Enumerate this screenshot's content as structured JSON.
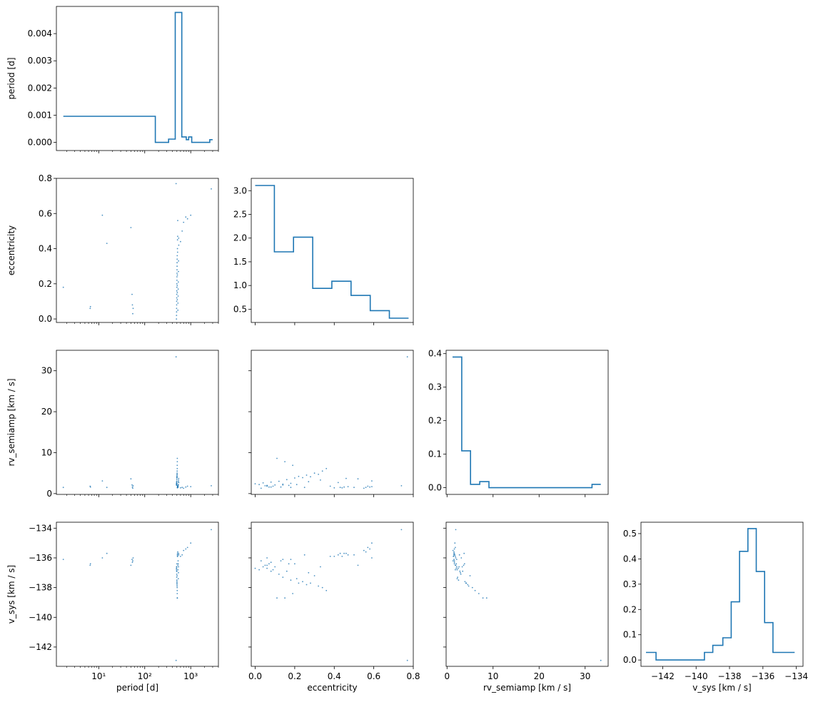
{
  "colors": {
    "series": "#1f77b4",
    "axis": "#000000",
    "background": "#ffffff"
  },
  "chart_data": {
    "type": "corner",
    "variables": [
      "period",
      "eccentricity",
      "rv_semiamp",
      "v_sys"
    ],
    "labels": {
      "period": "period [d]",
      "eccentricity": "eccentricity",
      "rv_semiamp": "rv_semiamp [km / s]",
      "v_sys": "v_sys [km / s]"
    },
    "axes": {
      "period": {
        "scale": "log",
        "lim": [
          1.2,
          4000
        ],
        "ticks": [
          {
            "value": 10,
            "label": "10¹"
          },
          {
            "value": 100,
            "label": "10²"
          },
          {
            "value": 1000,
            "label": "10³"
          }
        ]
      },
      "eccentricity": {
        "scale": "linear",
        "lim": [
          -0.02,
          0.8
        ],
        "ticks": [
          {
            "value": 0.0,
            "label": "0.0"
          },
          {
            "value": 0.2,
            "label": "0.2"
          },
          {
            "value": 0.4,
            "label": "0.4"
          },
          {
            "value": 0.6,
            "label": "0.6"
          },
          {
            "value": 0.8,
            "label": "0.8"
          }
        ]
      },
      "rv_semiamp": {
        "scale": "linear",
        "lim": [
          -0.2,
          35
        ],
        "ticks": [
          {
            "value": 0,
            "label": "0"
          },
          {
            "value": 10,
            "label": "10"
          },
          {
            "value": 20,
            "label": "20"
          },
          {
            "value": 30,
            "label": "30"
          }
        ]
      },
      "v_sys": {
        "scale": "linear",
        "lim": [
          -143.3,
          -133.6
        ],
        "ticks": [
          {
            "value": -142,
            "label": "−142"
          },
          {
            "value": -140,
            "label": "−140"
          },
          {
            "value": -138,
            "label": "−138"
          },
          {
            "value": -136,
            "label": "−136"
          },
          {
            "value": -134,
            "label": "−134"
          }
        ]
      }
    },
    "histograms": {
      "period": {
        "ylim": [
          -0.0003,
          0.005
        ],
        "yticks": [
          {
            "value": 0.0,
            "label": "0.000"
          },
          {
            "value": 0.001,
            "label": "0.001"
          },
          {
            "value": 0.002,
            "label": "0.002"
          },
          {
            "value": 0.003,
            "label": "0.003"
          },
          {
            "value": 0.004,
            "label": "0.004"
          }
        ],
        "edges": [
          1.7,
          170,
          330,
          460,
          640,
          800,
          900,
          1050,
          2600,
          3000
        ],
        "values": [
          0.00096,
          0.0,
          0.00012,
          0.00478,
          0.0002,
          0.0001,
          0.0002,
          0.0,
          0.0001
        ]
      },
      "eccentricity": {
        "ylim": [
          0.22,
          3.26
        ],
        "yticks": [
          {
            "value": 0.5,
            "label": "0.5"
          },
          {
            "value": 1.0,
            "label": "1.0"
          },
          {
            "value": 1.5,
            "label": "1.5"
          },
          {
            "value": 2.0,
            "label": "2.0"
          },
          {
            "value": 2.5,
            "label": "2.5"
          },
          {
            "value": 3.0,
            "label": "3.0"
          }
        ],
        "edges": [
          0.0,
          0.097,
          0.194,
          0.291,
          0.388,
          0.485,
          0.582,
          0.679,
          0.776
        ],
        "values": [
          3.11,
          1.71,
          2.02,
          0.94,
          1.09,
          0.79,
          0.47,
          0.31
        ]
      },
      "rv_semiamp": {
        "ylim": [
          -0.02,
          0.41
        ],
        "yticks": [
          {
            "value": 0.0,
            "label": "0.0"
          },
          {
            "value": 0.1,
            "label": "0.1"
          },
          {
            "value": 0.2,
            "label": "0.2"
          },
          {
            "value": 0.3,
            "label": "0.3"
          },
          {
            "value": 0.4,
            "label": "0.4"
          }
        ],
        "edges": [
          1.2,
          3.2,
          5.1,
          7.1,
          9.1,
          31.5,
          33.4
        ],
        "values": [
          0.39,
          0.11,
          0.01,
          0.018,
          0.0,
          0.01
        ]
      },
      "v_sys": {
        "ylim": [
          -0.025,
          0.545
        ],
        "yticks": [
          {
            "value": 0.0,
            "label": "0.0"
          },
          {
            "value": 0.1,
            "label": "0.1"
          },
          {
            "value": 0.2,
            "label": "0.2"
          },
          {
            "value": 0.3,
            "label": "0.3"
          },
          {
            "value": 0.4,
            "label": "0.4"
          },
          {
            "value": 0.5,
            "label": "0.5"
          }
        ],
        "edges": [
          -143.0,
          -142.4,
          -139.5,
          -139.0,
          -138.4,
          -137.9,
          -137.4,
          -136.9,
          -136.4,
          -135.9,
          -135.4,
          -134.9,
          -134.1
        ],
        "values": [
          0.03,
          0.0,
          0.03,
          0.058,
          0.088,
          0.23,
          0.43,
          0.52,
          0.35,
          0.148,
          0.03,
          0.03
        ]
      }
    },
    "samples": [
      {
        "period": 1.7,
        "eccentricity": 0.18,
        "rv_semiamp": 1.5,
        "v_sys": -136.1
      },
      {
        "period": 6.5,
        "eccentricity": 0.06,
        "rv_semiamp": 1.8,
        "v_sys": -136.5
      },
      {
        "period": 6.6,
        "eccentricity": 0.07,
        "rv_semiamp": 1.6,
        "v_sys": -136.4
      },
      {
        "period": 12,
        "eccentricity": 0.59,
        "rv_semiamp": 3.1,
        "v_sys": -136.0
      },
      {
        "period": 15,
        "eccentricity": 0.43,
        "rv_semiamp": 1.5,
        "v_sys": -135.7
      },
      {
        "period": 50,
        "eccentricity": 0.52,
        "rv_semiamp": 3.6,
        "v_sys": -136.5
      },
      {
        "period": 53,
        "eccentricity": 0.14,
        "rv_semiamp": 2.1,
        "v_sys": -136.1
      },
      {
        "period": 54,
        "eccentricity": 0.08,
        "rv_semiamp": 1.6,
        "v_sys": -136.3
      },
      {
        "period": 55,
        "eccentricity": 0.03,
        "rv_semiamp": 1.3,
        "v_sys": -136.2
      },
      {
        "period": 56,
        "eccentricity": 0.06,
        "rv_semiamp": 1.9,
        "v_sys": -136.0
      },
      {
        "period": 480,
        "eccentricity": 0.77,
        "rv_semiamp": 33.4,
        "v_sys": -142.9
      },
      {
        "period": 490,
        "eccentricity": 0.0,
        "rv_semiamp": 2.4,
        "v_sys": -136.7
      },
      {
        "period": 491,
        "eccentricity": 0.02,
        "rv_semiamp": 2.2,
        "v_sys": -136.8
      },
      {
        "period": 492,
        "eccentricity": 0.04,
        "rv_semiamp": 2.6,
        "v_sys": -136.6
      },
      {
        "period": 493,
        "eccentricity": 0.06,
        "rv_semiamp": 2.0,
        "v_sys": -136.7
      },
      {
        "period": 494,
        "eccentricity": 0.08,
        "rv_semiamp": 2.8,
        "v_sys": -136.9
      },
      {
        "period": 495,
        "eccentricity": 0.1,
        "rv_semiamp": 2.1,
        "v_sys": -136.6
      },
      {
        "period": 496,
        "eccentricity": 0.12,
        "rv_semiamp": 3.0,
        "v_sys": -137.1
      },
      {
        "period": 497,
        "eccentricity": 0.14,
        "rv_semiamp": 2.3,
        "v_sys": -137.3
      },
      {
        "period": 498,
        "eccentricity": 0.16,
        "rv_semiamp": 3.4,
        "v_sys": -136.9
      },
      {
        "period": 499,
        "eccentricity": 0.18,
        "rv_semiamp": 2.5,
        "v_sys": -137.5
      },
      {
        "period": 500,
        "eccentricity": 0.2,
        "rv_semiamp": 3.8,
        "v_sys": -136.4
      },
      {
        "period": 501,
        "eccentricity": 0.22,
        "rv_semiamp": 4.2,
        "v_sys": -137.7
      },
      {
        "period": 502,
        "eccentricity": 0.24,
        "rv_semiamp": 3.9,
        "v_sys": -137.6
      },
      {
        "period": 503,
        "eccentricity": 0.26,
        "rv_semiamp": 4.5,
        "v_sys": -137.8
      },
      {
        "period": 504,
        "eccentricity": 0.28,
        "rv_semiamp": 4.1,
        "v_sys": -137.7
      },
      {
        "period": 505,
        "eccentricity": 0.3,
        "rv_semiamp": 5.0,
        "v_sys": -137.2
      },
      {
        "period": 506,
        "eccentricity": 0.32,
        "rv_semiamp": 4.7,
        "v_sys": -137.9
      },
      {
        "period": 507,
        "eccentricity": 0.34,
        "rv_semiamp": 5.5,
        "v_sys": -138.0
      },
      {
        "period": 508,
        "eccentricity": 0.36,
        "rv_semiamp": 6.1,
        "v_sys": -138.2
      },
      {
        "period": 509,
        "eccentricity": 0.19,
        "rv_semiamp": 6.9,
        "v_sys": -138.4
      },
      {
        "period": 510,
        "eccentricity": 0.15,
        "rv_semiamp": 7.8,
        "v_sys": -138.7
      },
      {
        "period": 511,
        "eccentricity": 0.11,
        "rv_semiamp": 8.6,
        "v_sys": -138.7
      },
      {
        "period": 512,
        "eccentricity": 0.25,
        "rv_semiamp": 1.5,
        "v_sys": -135.8
      },
      {
        "period": 514,
        "eccentricity": 0.4,
        "rv_semiamp": 1.4,
        "v_sys": -135.9
      },
      {
        "period": 516,
        "eccentricity": 0.45,
        "rv_semiamp": 1.6,
        "v_sys": -135.7
      },
      {
        "period": 518,
        "eccentricity": 0.38,
        "rv_semiamp": 1.8,
        "v_sys": -135.9
      },
      {
        "period": 520,
        "eccentricity": 0.47,
        "rv_semiamp": 1.7,
        "v_sys": -135.8
      },
      {
        "period": 522,
        "eccentricity": 0.56,
        "rv_semiamp": 1.5,
        "v_sys": -135.6
      },
      {
        "period": 525,
        "eccentricity": 0.05,
        "rv_semiamp": 1.9,
        "v_sys": -136.5
      },
      {
        "period": 528,
        "eccentricity": 0.09,
        "rv_semiamp": 1.8,
        "v_sys": -136.8
      },
      {
        "period": 531,
        "eccentricity": 0.13,
        "rv_semiamp": 1.6,
        "v_sys": -136.2
      },
      {
        "period": 534,
        "eccentricity": 0.17,
        "rv_semiamp": 2.0,
        "v_sys": -136.4
      },
      {
        "period": 537,
        "eccentricity": 0.21,
        "rv_semiamp": 2.2,
        "v_sys": -137.4
      },
      {
        "period": 540,
        "eccentricity": 0.27,
        "rv_semiamp": 2.9,
        "v_sys": -137.0
      },
      {
        "period": 543,
        "eccentricity": 0.33,
        "rv_semiamp": 3.3,
        "v_sys": -136.6
      },
      {
        "period": 546,
        "eccentricity": 0.46,
        "rv_semiamp": 3.7,
        "v_sys": -135.7
      },
      {
        "period": 549,
        "eccentricity": 0.42,
        "rv_semiamp": 2.7,
        "v_sys": -135.8
      },
      {
        "period": 600,
        "eccentricity": 0.44,
        "rv_semiamp": 1.4,
        "v_sys": -135.9
      },
      {
        "period": 650,
        "eccentricity": 0.5,
        "rv_semiamp": 1.5,
        "v_sys": -135.8
      },
      {
        "period": 700,
        "eccentricity": 0.55,
        "rv_semiamp": 1.3,
        "v_sys": -135.5
      },
      {
        "period": 780,
        "eccentricity": 0.58,
        "rv_semiamp": 1.6,
        "v_sys": -135.4
      },
      {
        "period": 850,
        "eccentricity": 0.57,
        "rv_semiamp": 1.8,
        "v_sys": -135.3
      },
      {
        "period": 1000,
        "eccentricity": 0.59,
        "rv_semiamp": 1.7,
        "v_sys": -135.0
      },
      {
        "period": 2800,
        "eccentricity": 0.74,
        "rv_semiamp": 1.9,
        "v_sys": -134.1
      }
    ]
  }
}
